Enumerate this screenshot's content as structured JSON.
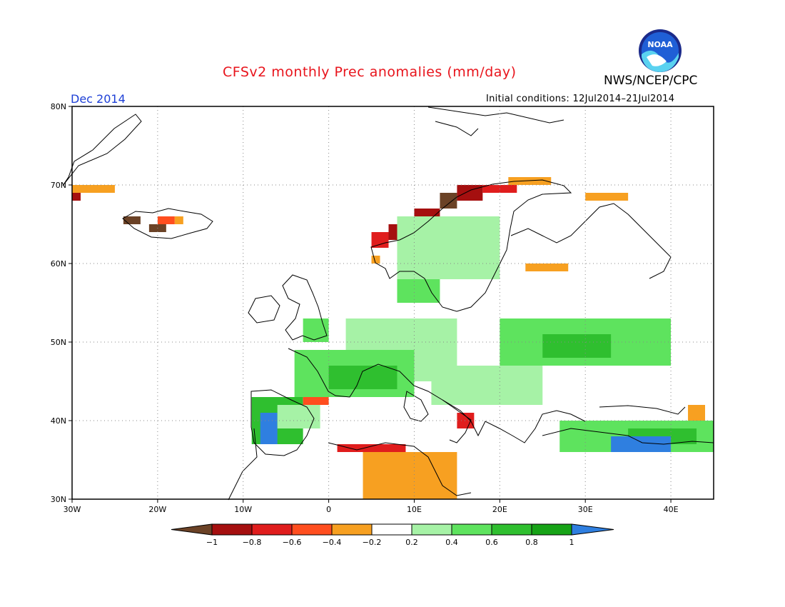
{
  "header": {
    "title": "CFSv2 monthly Prec anomalies (mm/day)",
    "organization": "NWS/NCEP/CPC",
    "month": "Dec 2014",
    "initial_conditions": "Initial conditions: 12Jul2014–21Jul2014",
    "logo_text": "NOAA"
  },
  "map": {
    "projection": "lat-lon",
    "lon_range": [
      -30,
      45
    ],
    "lat_range": [
      30,
      80
    ],
    "lat_ticks": [
      "30N",
      "40N",
      "50N",
      "60N",
      "70N",
      "80N"
    ],
    "lon_ticks": [
      "30W",
      "20W",
      "10W",
      "0",
      "10E",
      "20E",
      "30E",
      "40E"
    ],
    "gridlines": "dotted"
  },
  "colorbar": {
    "labels": [
      "−1",
      "−0.8",
      "−0.6",
      "−0.4",
      "−0.2",
      "0.2",
      "0.4",
      "0.6",
      "0.8",
      "1"
    ],
    "colors": {
      "lt_-1": "#6b4226",
      "-1_-0.8": "#a50f0f",
      "-0.8_-0.6": "#e01d1d",
      "-0.6_-0.4": "#ff4e1f",
      "-0.4_-0.2": "#f7a021",
      "-0.2_0.2": "#ffffff",
      "0.2_0.4": "#a6f2a6",
      "0.4_0.6": "#5ee35e",
      "0.6_0.8": "#2fbf2f",
      "0.8_1": "#17a317",
      "gt_1": "#2f7fe0"
    }
  },
  "chart_data": {
    "type": "heatmap",
    "title": "CFSv2 monthly Prec anomalies (mm/day)",
    "subtitle": "Dec 2014",
    "xlabel": "",
    "ylabel": "",
    "xlim": [
      -30,
      45
    ],
    "ylim": [
      30,
      80
    ],
    "cell_size_deg": 1,
    "regions": [
      {
        "lon": [
          -30,
          -25
        ],
        "lat": [
          69,
          70
        ],
        "value": -0.3
      },
      {
        "lon": [
          -30,
          -29
        ],
        "lat": [
          68,
          69
        ],
        "value": -0.9
      },
      {
        "lon": [
          -24,
          -22
        ],
        "lat": [
          65,
          66
        ],
        "value": -1.1
      },
      {
        "lon": [
          -21,
          -19
        ],
        "lat": [
          64,
          65
        ],
        "value": -1.1
      },
      {
        "lon": [
          -20,
          -18
        ],
        "lat": [
          65,
          66
        ],
        "value": -0.5
      },
      {
        "lon": [
          -18,
          -17
        ],
        "lat": [
          65,
          66
        ],
        "value": -0.3
      },
      {
        "lon": [
          5,
          7
        ],
        "lat": [
          62,
          64
        ],
        "value": -0.7
      },
      {
        "lon": [
          7,
          10
        ],
        "lat": [
          63,
          65
        ],
        "value": -0.9
      },
      {
        "lon": [
          10,
          13
        ],
        "lat": [
          65,
          67
        ],
        "value": -0.9
      },
      {
        "lon": [
          13,
          15
        ],
        "lat": [
          67,
          69
        ],
        "value": -1.1
      },
      {
        "lon": [
          15,
          18
        ],
        "lat": [
          68,
          70
        ],
        "value": -0.9
      },
      {
        "lon": [
          18,
          22
        ],
        "lat": [
          69,
          70
        ],
        "value": -0.7
      },
      {
        "lon": [
          21,
          26
        ],
        "lat": [
          70,
          71
        ],
        "value": -0.3
      },
      {
        "lon": [
          30,
          35
        ],
        "lat": [
          68,
          69
        ],
        "value": -0.3
      },
      {
        "lon": [
          23,
          28
        ],
        "lat": [
          59,
          60
        ],
        "value": -0.3
      },
      {
        "lon": [
          5,
          6
        ],
        "lat": [
          60,
          61
        ],
        "value": -0.3
      },
      {
        "lon": [
          8,
          20
        ],
        "lat": [
          58,
          66
        ],
        "value": 0.3
      },
      {
        "lon": [
          8,
          13
        ],
        "lat": [
          55,
          58
        ],
        "value": 0.4
      },
      {
        "lon": [
          -3,
          0
        ],
        "lat": [
          50,
          53
        ],
        "value": 0.4
      },
      {
        "lon": [
          2,
          15
        ],
        "lat": [
          45,
          53
        ],
        "value": 0.3
      },
      {
        "lon": [
          -4,
          10
        ],
        "lat": [
          43,
          49
        ],
        "value": 0.5
      },
      {
        "lon": [
          0,
          8
        ],
        "lat": [
          44,
          47
        ],
        "value": 0.7
      },
      {
        "lon": [
          12,
          25
        ],
        "lat": [
          42,
          47
        ],
        "value": 0.3
      },
      {
        "lon": [
          20,
          40
        ],
        "lat": [
          47,
          53
        ],
        "value": 0.4
      },
      {
        "lon": [
          25,
          33
        ],
        "lat": [
          48,
          51
        ],
        "value": 0.6
      },
      {
        "lon": [
          -9,
          -3
        ],
        "lat": [
          37,
          43
        ],
        "value": 0.7
      },
      {
        "lon": [
          -8,
          -6
        ],
        "lat": [
          37,
          41
        ],
        "value": 1.1
      },
      {
        "lon": [
          -6,
          -1
        ],
        "lat": [
          39,
          42
        ],
        "value": 0.3
      },
      {
        "lon": [
          -3,
          0
        ],
        "lat": [
          42,
          43
        ],
        "value": -0.5
      },
      {
        "lon": [
          1,
          9
        ],
        "lat": [
          36,
          37
        ],
        "value": -0.7
      },
      {
        "lon": [
          4,
          15
        ],
        "lat": [
          30,
          36
        ],
        "value": -0.3
      },
      {
        "lon": [
          15,
          17
        ],
        "lat": [
          39,
          41
        ],
        "value": -0.7
      },
      {
        "lon": [
          27,
          45
        ],
        "lat": [
          36,
          40
        ],
        "value": 0.4
      },
      {
        "lon": [
          35,
          43
        ],
        "lat": [
          37,
          39
        ],
        "value": 0.7
      },
      {
        "lon": [
          33,
          40
        ],
        "lat": [
          36,
          38
        ],
        "value": 1.1
      },
      {
        "lon": [
          42,
          44
        ],
        "lat": [
          40,
          42
        ],
        "value": -0.4
      }
    ]
  }
}
